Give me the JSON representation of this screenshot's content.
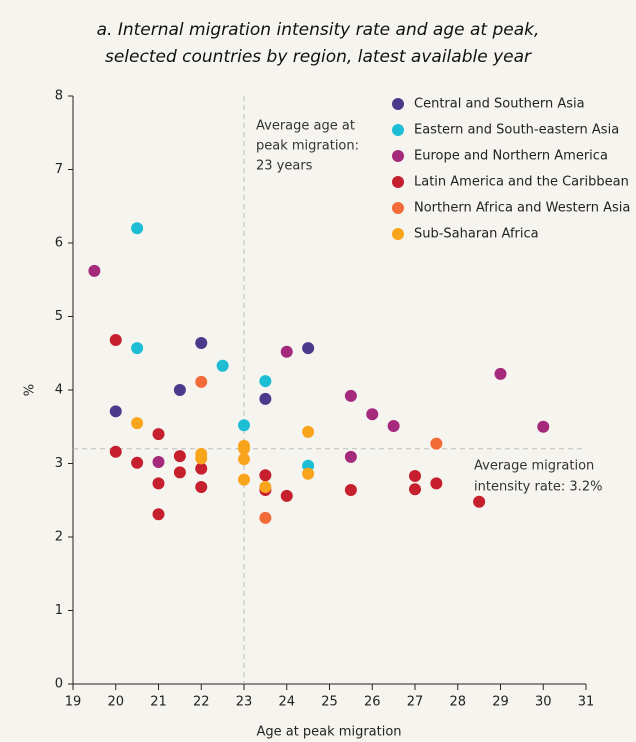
{
  "chart_data": {
    "type": "scatter",
    "title": [
      "a. Internal migration intensity rate and age at peak,",
      "selected countries by region, latest available year"
    ],
    "x_label": "Age at peak migration",
    "y_label": "%",
    "xlim": [
      19,
      31
    ],
    "ylim": [
      0,
      8
    ],
    "xticks": [
      19,
      20,
      21,
      22,
      23,
      24,
      25,
      26,
      27,
      28,
      29,
      30,
      31
    ],
    "yticks": [
      0,
      1,
      2,
      3,
      4,
      5,
      6,
      7,
      8
    ],
    "legend": "upper right",
    "reference_x": 23,
    "reference_y": 3.2,
    "annotations": [
      [
        "Average age at",
        "peak migration:",
        "23 years"
      ],
      [
        "Average migration",
        "intensity rate: 3.2%"
      ]
    ],
    "series": [
      {
        "name": "Central and Southern Asia",
        "color": "#4a3a8c",
        "x": [
          20,
          21.5,
          22,
          23.5,
          24.5
        ],
        "values": [
          3.71,
          4.0,
          4.64,
          3.88,
          4.57
        ]
      },
      {
        "name": "Eastern and South-eastern Asia",
        "color": "#1dbdd4",
        "x": [
          20.5,
          20.5,
          22.5,
          23,
          23.5,
          24.5
        ],
        "values": [
          6.2,
          4.57,
          4.33,
          3.52,
          4.12,
          2.97
        ]
      },
      {
        "name": "Europe and Northern America",
        "color": "#a52a7c",
        "x": [
          19.5,
          21,
          24,
          25.5,
          25.5,
          26,
          26.5,
          29,
          30
        ],
        "values": [
          5.62,
          3.02,
          4.52,
          3.92,
          3.09,
          3.67,
          3.51,
          4.22,
          3.5
        ]
      },
      {
        "name": "Latin America and the Caribbean",
        "color": "#c6202f",
        "x": [
          20,
          20,
          20.5,
          21,
          21,
          21,
          21.5,
          21.5,
          22,
          22,
          23.5,
          23.5,
          24,
          25.5,
          27,
          27,
          27.5,
          28.5
        ],
        "values": [
          4.68,
          3.16,
          3.01,
          3.4,
          2.73,
          2.31,
          3.1,
          2.88,
          2.93,
          2.68,
          2.84,
          2.64,
          2.56,
          2.64,
          2.83,
          2.65,
          2.73,
          2.48
        ]
      },
      {
        "name": "Northern Africa and Western Asia",
        "color": "#f26b38",
        "x": [
          22,
          23.5,
          27.5
        ],
        "values": [
          4.11,
          2.26,
          3.27
        ]
      },
      {
        "name": "Sub-Saharan Africa",
        "color": "#f8a51c",
        "x": [
          20.5,
          22,
          22,
          23,
          23,
          23,
          23,
          23.5,
          24.5,
          24.5
        ],
        "values": [
          3.55,
          3.13,
          3.07,
          3.24,
          3.2,
          3.06,
          2.78,
          2.68,
          3.43,
          2.86
        ]
      }
    ]
  }
}
